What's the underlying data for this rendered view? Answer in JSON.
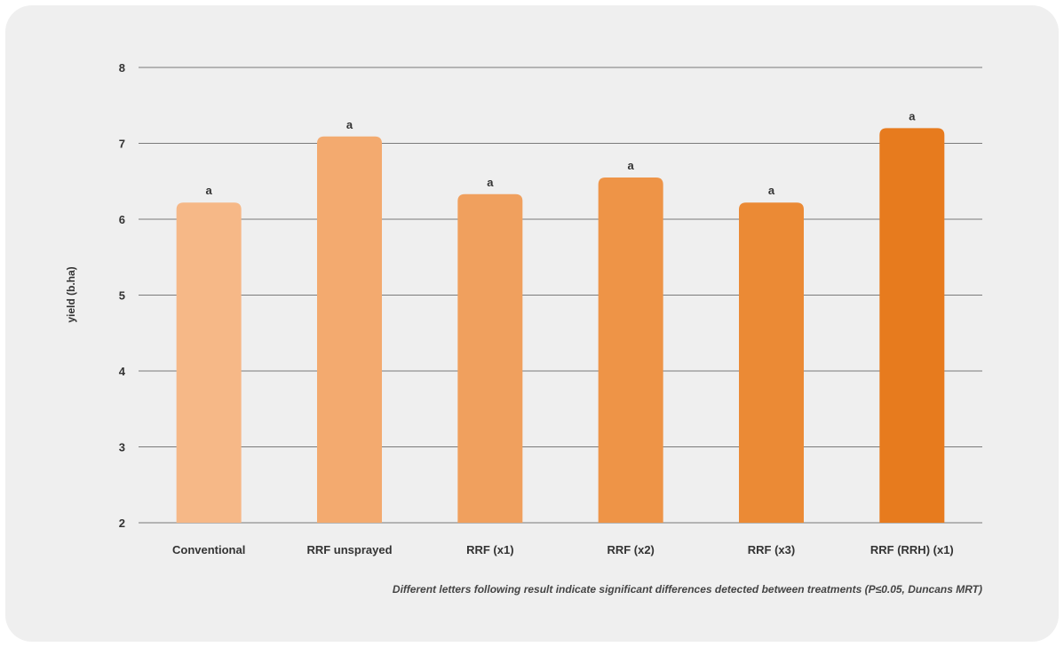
{
  "chart_data": {
    "type": "bar",
    "categories": [
      "Conventional",
      "RRF unsprayed",
      "RRF (x1)",
      "RRF (x2)",
      "RRF (x3)",
      "RRF (RRH) (x1)"
    ],
    "values": [
      6.22,
      7.09,
      6.33,
      6.55,
      6.22,
      7.2
    ],
    "bar_labels": [
      "a",
      "a",
      "a",
      "a",
      "a",
      "a"
    ],
    "bar_colors": [
      "#f6b887",
      "#f3aa6f",
      "#f0a05e",
      "#ee9447",
      "#eb8a35",
      "#e77b1e"
    ],
    "xlabel": "",
    "ylabel": "yield (b.ha)",
    "ylim": [
      2,
      8
    ],
    "yticks": [
      2,
      3,
      4,
      5,
      6,
      7,
      8
    ],
    "grid": true,
    "grid_color": "#7a7a7a",
    "background": "#efefef",
    "footnote": "Different letters following result indicate significant differences detected between treatments (P≤0.05, Duncans MRT)"
  }
}
